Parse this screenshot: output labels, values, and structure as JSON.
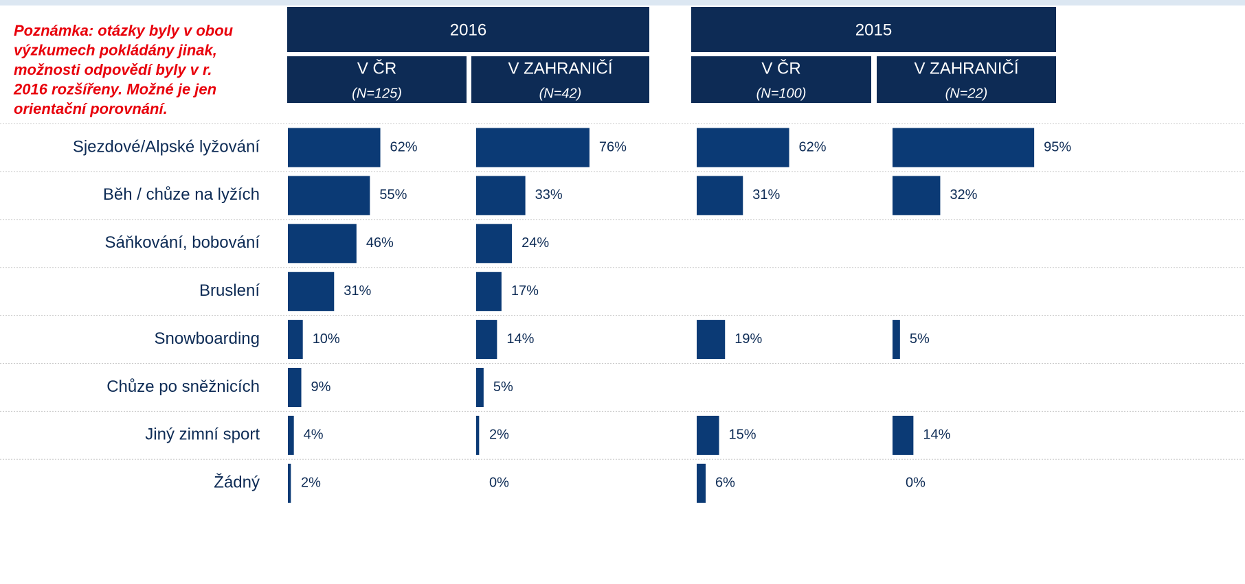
{
  "note": [
    "Poznámka: otázky byly v obou",
    "výzkumech pokládány jinak,",
    "možnosti odpovědí byly v r.",
    "2016 rozšířeny. Možné je jen",
    "orientační porovnání."
  ],
  "groups": [
    {
      "title": "2016"
    },
    {
      "title": "2015"
    }
  ],
  "categories": [
    "Sjezdové/Alpské lyžování",
    "Běh / chůze na lyžích",
    "Sáňkování, bobování",
    "Bruslení",
    "Snowboarding",
    "Chůze po sněžnicích",
    "Jiný zimní sport",
    "Žádný"
  ],
  "chart_data": [
    {
      "type": "barh",
      "title": "V ČR",
      "subtitle": "(N=125)",
      "color": "#0b3a75",
      "values": [
        62,
        55,
        46,
        31,
        10,
        9,
        4,
        2
      ],
      "value_labels": [
        "62%",
        "55%",
        "46%",
        "31%",
        "10%",
        "9%",
        "4%",
        "2%"
      ]
    },
    {
      "type": "barh",
      "title": "V ZAHRANIČÍ",
      "subtitle": "(N=42)",
      "color": "#0b3a75",
      "values": [
        76,
        33,
        24,
        17,
        14,
        5,
        2,
        0
      ],
      "value_labels": [
        "76%",
        "33%",
        "24%",
        "17%",
        "14%",
        "5%",
        "2%",
        "0%"
      ]
    },
    {
      "type": "barh",
      "title": "V ČR",
      "subtitle": "(N=100)",
      "color": "#0b3a75",
      "values": [
        62,
        31,
        null,
        null,
        19,
        null,
        15,
        6
      ],
      "value_labels": [
        "62%",
        "31%",
        null,
        null,
        "19%",
        null,
        "15%",
        "6%"
      ]
    },
    {
      "type": "barh",
      "title": "V ZAHRANIČÍ",
      "subtitle": "(N=22)",
      "color": "#0b3a75",
      "values": [
        95,
        32,
        null,
        null,
        5,
        null,
        14,
        0
      ],
      "value_labels": [
        "95%",
        "32%",
        null,
        null,
        "5%",
        null,
        "14%",
        "0%"
      ]
    }
  ]
}
